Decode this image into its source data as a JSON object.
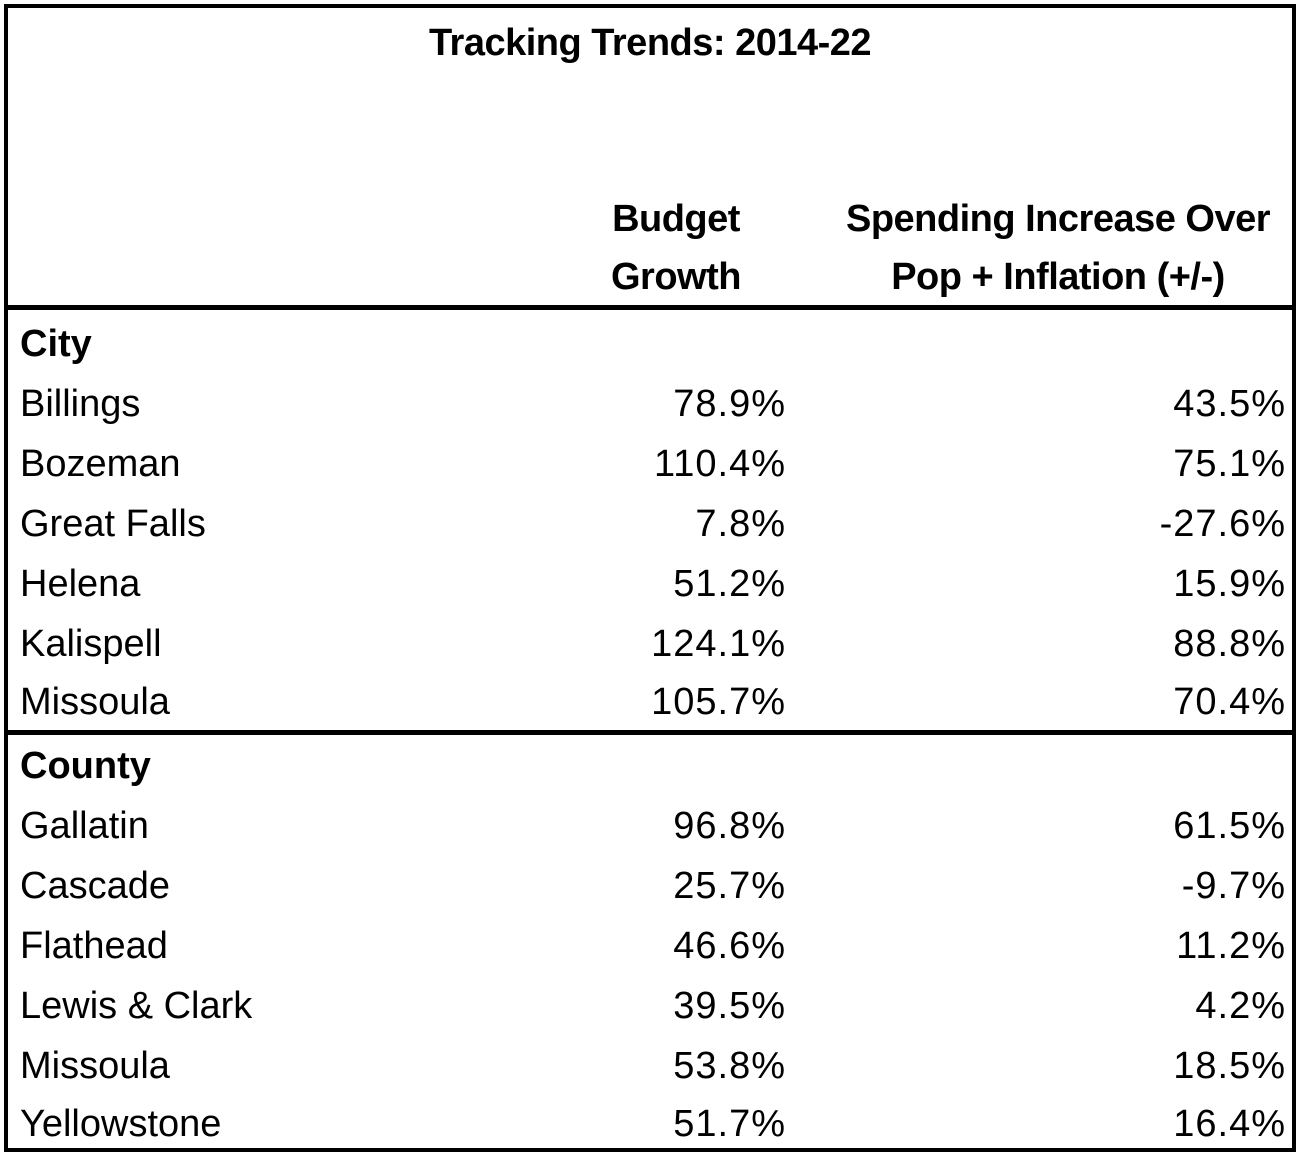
{
  "title": "Tracking Trends: 2014-22",
  "columns": {
    "budget_line1": "Budget",
    "budget_line2": "Growth",
    "spend_line1": "Spending Increase Over",
    "spend_line2": "Pop + Inflation (+/-)"
  },
  "sections": [
    {
      "label": "City",
      "rows": [
        {
          "name": "Billings",
          "budget": "78.9%",
          "spend": "43.5%"
        },
        {
          "name": "Bozeman",
          "budget": "110.4%",
          "spend": "75.1%"
        },
        {
          "name": "Great Falls",
          "budget": "7.8%",
          "spend": "-27.6%"
        },
        {
          "name": "Helena",
          "budget": "51.2%",
          "spend": "15.9%"
        },
        {
          "name": "Kalispell",
          "budget": "124.1%",
          "spend": "88.8%"
        },
        {
          "name": "Missoula",
          "budget": "105.7%",
          "spend": "70.4%"
        }
      ]
    },
    {
      "label": "County",
      "rows": [
        {
          "name": "Gallatin",
          "budget": "96.8%",
          "spend": "61.5%"
        },
        {
          "name": "Cascade",
          "budget": "25.7%",
          "spend": "-9.7%"
        },
        {
          "name": "Flathead",
          "budget": "46.6%",
          "spend": "11.2%"
        },
        {
          "name": "Lewis & Clark",
          "budget": "39.5%",
          "spend": "4.2%"
        },
        {
          "name": "Missoula",
          "budget": "53.8%",
          "spend": "18.5%"
        },
        {
          "name": "Yellowstone",
          "budget": "51.7%",
          "spend": "16.4%"
        }
      ]
    }
  ]
}
